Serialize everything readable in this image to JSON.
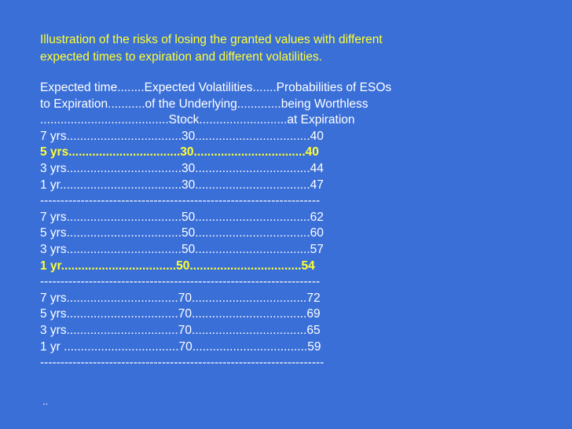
{
  "title_lines": [
    "Illustration of the risks of losing the granted values with different",
    "expected times to expiration and different volatilities."
  ],
  "header_lines": [
    "Expected time........Expected Volatilities.......Probabilities of ESOs",
    "to Expiration...........of the Underlying.............being Worthless",
    "......................................Stock..........................at Expiration"
  ],
  "rows": [
    "7 yrs..................................30..................................40",
    "5 yrs.................................30.................................40",
    "3 yrs..................................30..................................44",
    "1 yr....................................30..................................47",
    "---------------------------------------------------------------------",
    "7 yrs..................................50..................................62",
    "5 yrs..................................50..................................60",
    "3 yrs..................................50..................................57",
    "1 yr..................................50.................................54",
    "---------------------------------------------------------------------",
    " 7 yrs.................................70..................................72",
    " 5 yrs.................................70..................................69",
    " 3 yrs.................................70..................................65",
    " 1 yr ..................................70..................................59",
    "----------------------------------------------------------------------"
  ],
  "footer_text": "..",
  "colors": {
    "background": "#3a6fd8",
    "text": "#ffffff",
    "highlight": "#ffff33"
  }
}
